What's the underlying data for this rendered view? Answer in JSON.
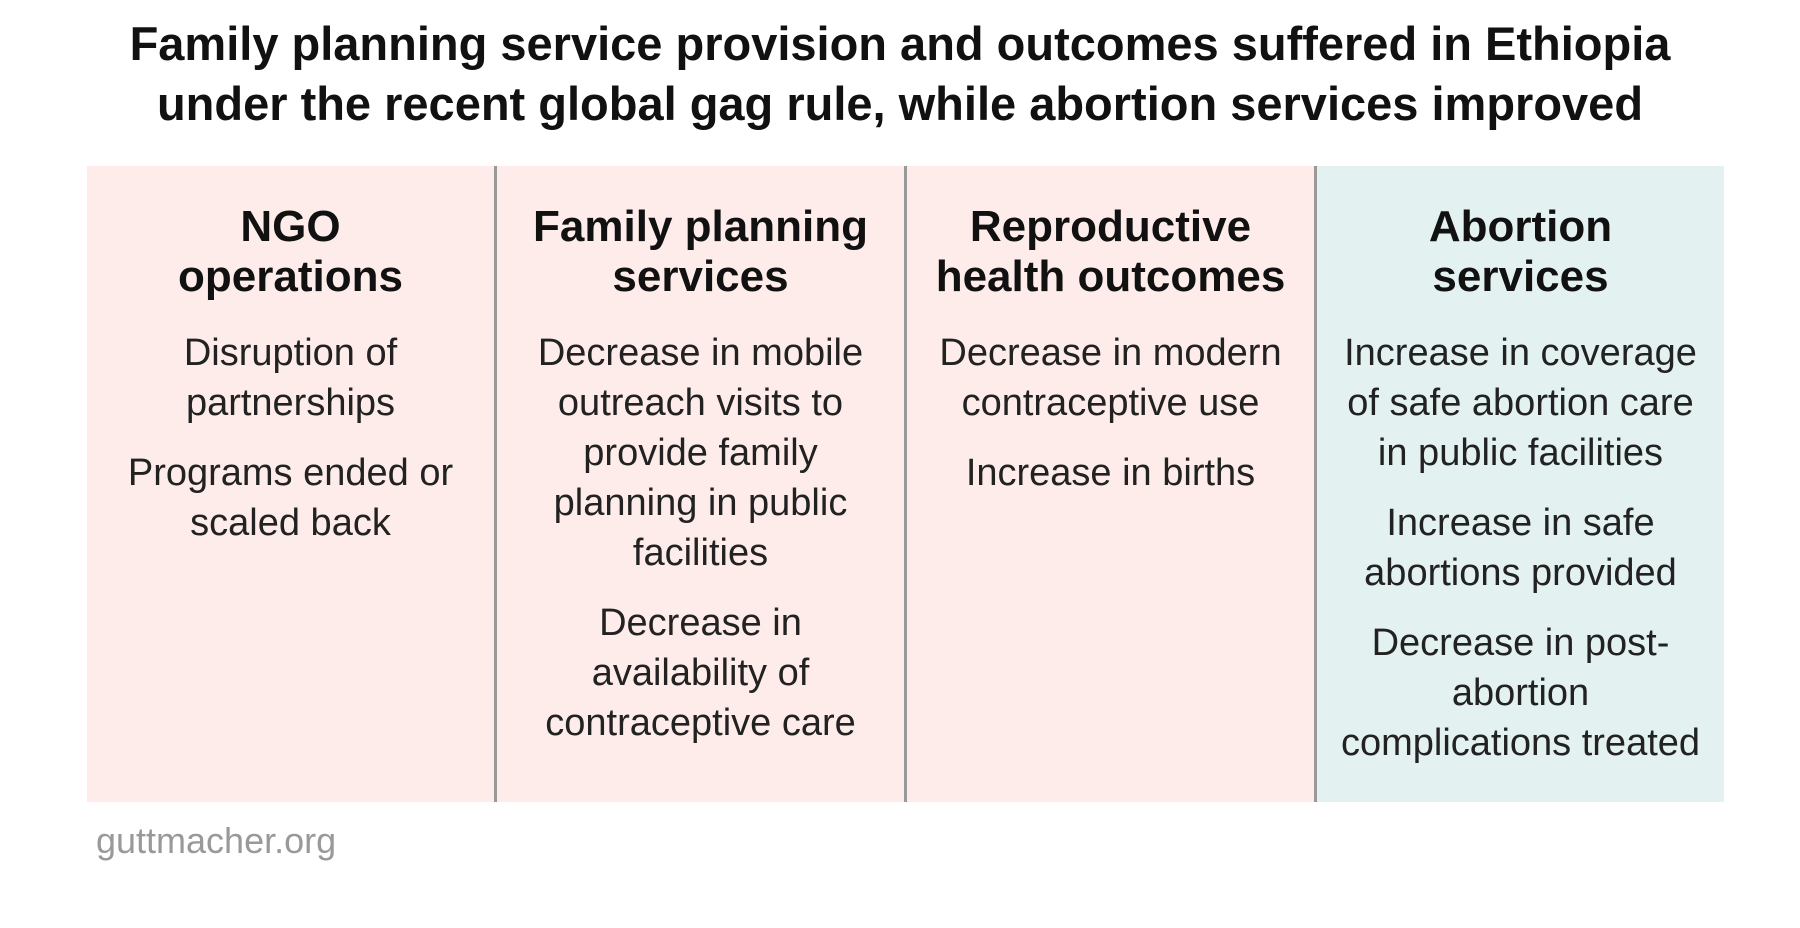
{
  "title": [
    "Family planning service provision and outcomes suffered in Ethiopia",
    "under the recent global gag rule, while abortion services improved"
  ],
  "columns": [
    {
      "heading": [
        "NGO",
        "operations"
      ],
      "color": "#fdece9",
      "items": [
        "Disruption of partnerships",
        "Programs ended or scaled back"
      ]
    },
    {
      "heading": [
        "Family planning",
        "services"
      ],
      "color": "#fdece9",
      "items": [
        "Decrease in mobile outreach visits to provide family planning in public facilities",
        "Decrease in availability of contraceptive care"
      ]
    },
    {
      "heading": [
        "Reproductive",
        "health outcomes"
      ],
      "color": "#fdece9",
      "items": [
        "Decrease in modern contraceptive use",
        "Increase in births"
      ]
    },
    {
      "heading": [
        "Abortion",
        "services"
      ],
      "color": "#e3f1f1",
      "items": [
        "Increase in coverage of safe abortion care in public facilities",
        "Increase in safe abortions provided",
        "Decrease in post-abortion complications treated"
      ]
    }
  ],
  "footer": "guttmacher.org"
}
